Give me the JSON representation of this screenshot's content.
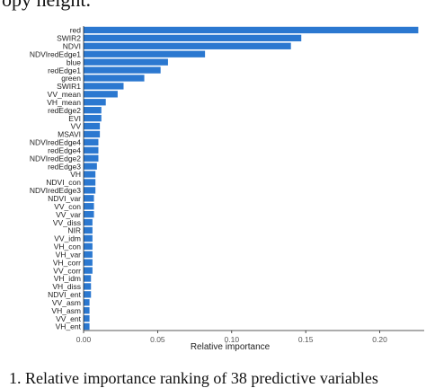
{
  "caption": {
    "top": "opy height.",
    "bottom": "1.   Relative importance ranking of 38 predictive variables"
  },
  "colors": {
    "bar": "#2b78d0",
    "axis": "#222222",
    "text": "#222222"
  },
  "chart_data": {
    "type": "bar",
    "orientation": "horizontal",
    "xlabel": "Relative importance",
    "ylabel": "",
    "xlim": [
      0,
      0.23
    ],
    "xticks": [
      0.0,
      0.05,
      0.1,
      0.15,
      0.2
    ],
    "xtick_labels": [
      "0.00",
      "0.05",
      "0.10",
      "0.15",
      "0.20"
    ],
    "grid": false,
    "categories": [
      "red",
      "SWIR2",
      "NDVI",
      "NDVIredEdge1",
      "blue",
      "redEdge1",
      "green",
      "SWIR1",
      "VV_mean",
      "VH_mean",
      "redEdge2",
      "EVI",
      "VV",
      "MSAVI",
      "NDVIredEdge4",
      "redEdge4",
      "NDVIredEdge2",
      "redEdge3",
      "VH",
      "NDVI_con",
      "NDVIredEdge3",
      "NDVI_var",
      "VV_con",
      "VV_var",
      "VV_diss",
      "NIR",
      "VV_idm",
      "VH_con",
      "VH_var",
      "VH_corr",
      "VV_corr",
      "VH_idm",
      "VH_diss",
      "NDVI_ent",
      "VV_asm",
      "VH_asm",
      "VV_ent",
      "VH_ent"
    ],
    "values": [
      0.226,
      0.147,
      0.14,
      0.082,
      0.057,
      0.052,
      0.041,
      0.027,
      0.023,
      0.015,
      0.012,
      0.012,
      0.011,
      0.011,
      0.01,
      0.01,
      0.01,
      0.009,
      0.008,
      0.008,
      0.008,
      0.007,
      0.007,
      0.007,
      0.006,
      0.006,
      0.006,
      0.006,
      0.006,
      0.006,
      0.006,
      0.005,
      0.005,
      0.005,
      0.004,
      0.004,
      0.004,
      0.004
    ]
  }
}
